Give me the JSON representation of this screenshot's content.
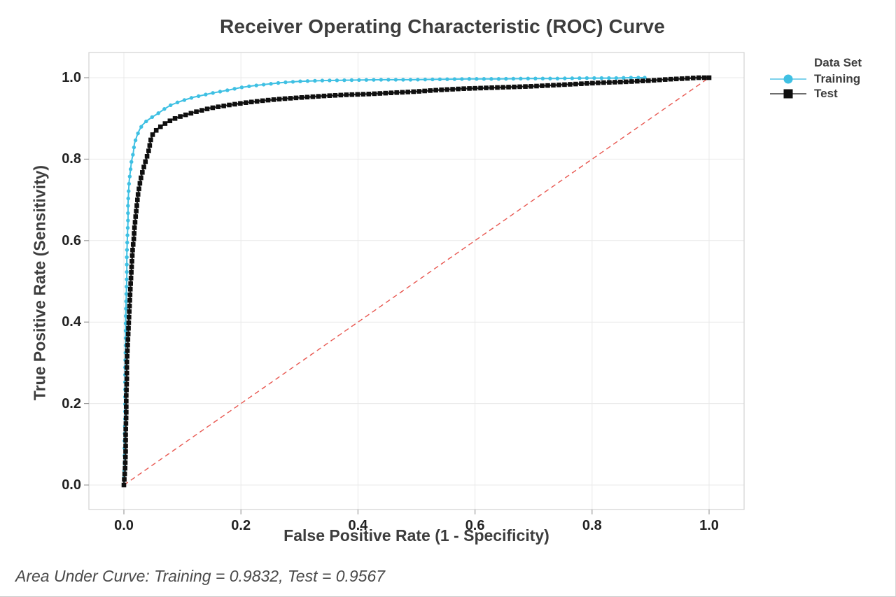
{
  "title": "Receiver Operating Characteristic (ROC) Curve",
  "footer": {
    "text": "Area Under Curve: Training = 0.9832, Test = 0.9567"
  },
  "legend": {
    "title": "Data Set",
    "items": [
      {
        "label": "Training",
        "marker": "circle",
        "marker_color": "#3fc0e3",
        "line_color": "#7dd2ec"
      },
      {
        "label": "Test",
        "marker": "square",
        "marker_color": "#0f0f0f",
        "line_color": "#6e6e6e"
      }
    ]
  },
  "axes": {
    "x": {
      "label": "False Positive Rate (1 - Specificity)",
      "tick_labels": [
        "0.0",
        "0.2",
        "0.4",
        "0.6",
        "0.8",
        "1.0"
      ],
      "tick_values": [
        0,
        0.2,
        0.4,
        0.6,
        0.8,
        1.0
      ],
      "range": [
        0,
        1
      ]
    },
    "y": {
      "label": "True Positive Rate (Sensitivity)",
      "tick_labels": [
        "0.0",
        "0.2",
        "0.4",
        "0.6",
        "0.8",
        "1.0"
      ],
      "tick_values": [
        0,
        0.2,
        0.4,
        0.6,
        0.8,
        1.0
      ],
      "range": [
        0,
        1
      ]
    }
  },
  "colors": {
    "grid": "#e9e9e9",
    "frame": "#d3d3d3",
    "tick": "#9e9e9e",
    "reference": "#e85750"
  },
  "chart_data": {
    "type": "line",
    "title": "Receiver Operating Characteristic (ROC) Curve",
    "xlabel": "False Positive Rate (1 - Specificity)",
    "ylabel": "True Positive Rate (Sensitivity)",
    "xlim": [
      0,
      1
    ],
    "ylim": [
      0,
      1
    ],
    "grid": true,
    "legend_position": "right",
    "legend_title": "Data Set",
    "reference_line": {
      "style": "dashed",
      "color": "#e85750",
      "from": [
        0,
        0
      ],
      "to": [
        1,
        1
      ]
    },
    "annotations": [
      "Area Under Curve: Training = 0.9832, Test = 0.9567"
    ],
    "series": [
      {
        "name": "Training",
        "auc": 0.9832,
        "color": "#3fc0e3",
        "line_color": "#3fc0e3",
        "marker": "circle",
        "points": [
          [
            0.0,
            0.0
          ],
          [
            0.001,
            0.055
          ],
          [
            0.001,
            0.11
          ],
          [
            0.002,
            0.165
          ],
          [
            0.002,
            0.225
          ],
          [
            0.002,
            0.285
          ],
          [
            0.003,
            0.345
          ],
          [
            0.003,
            0.405
          ],
          [
            0.004,
            0.46
          ],
          [
            0.005,
            0.515
          ],
          [
            0.005,
            0.565
          ],
          [
            0.006,
            0.61
          ],
          [
            0.007,
            0.65
          ],
          [
            0.007,
            0.69
          ],
          [
            0.008,
            0.72
          ],
          [
            0.009,
            0.745
          ],
          [
            0.011,
            0.77
          ],
          [
            0.013,
            0.795
          ],
          [
            0.016,
            0.815
          ],
          [
            0.018,
            0.838
          ],
          [
            0.022,
            0.856
          ],
          [
            0.026,
            0.87
          ],
          [
            0.031,
            0.883
          ],
          [
            0.039,
            0.894
          ],
          [
            0.048,
            0.903
          ],
          [
            0.057,
            0.911
          ],
          [
            0.069,
            0.923
          ],
          [
            0.079,
            0.932
          ],
          [
            0.091,
            0.939
          ],
          [
            0.103,
            0.945
          ],
          [
            0.119,
            0.952
          ],
          [
            0.135,
            0.957
          ],
          [
            0.15,
            0.962
          ],
          [
            0.165,
            0.966
          ],
          [
            0.18,
            0.97
          ],
          [
            0.2,
            0.976
          ],
          [
            0.22,
            0.98
          ],
          [
            0.245,
            0.984
          ],
          [
            0.27,
            0.988
          ],
          [
            0.3,
            0.991
          ],
          [
            0.34,
            0.993
          ],
          [
            0.39,
            0.994
          ],
          [
            0.44,
            0.995
          ],
          [
            0.49,
            0.995
          ],
          [
            0.54,
            0.996
          ],
          [
            0.59,
            0.997
          ],
          [
            0.64,
            0.997
          ],
          [
            0.69,
            0.998
          ],
          [
            0.74,
            0.998
          ],
          [
            0.79,
            0.999
          ],
          [
            0.84,
            0.999
          ],
          [
            0.865,
            1.0
          ],
          [
            0.89,
            1.0
          ]
        ]
      },
      {
        "name": "Test",
        "auc": 0.9567,
        "color": "#0f0f0f",
        "line_color": "#2a2a2a",
        "marker": "square",
        "points": [
          [
            0.0,
            0.0
          ],
          [
            0.002,
            0.04
          ],
          [
            0.003,
            0.085
          ],
          [
            0.003,
            0.13
          ],
          [
            0.004,
            0.175
          ],
          [
            0.004,
            0.22
          ],
          [
            0.005,
            0.26
          ],
          [
            0.005,
            0.3
          ],
          [
            0.006,
            0.33
          ],
          [
            0.007,
            0.36
          ],
          [
            0.008,
            0.39
          ],
          [
            0.009,
            0.42
          ],
          [
            0.01,
            0.45
          ],
          [
            0.011,
            0.48
          ],
          [
            0.012,
            0.505
          ],
          [
            0.013,
            0.53
          ],
          [
            0.014,
            0.555
          ],
          [
            0.015,
            0.58
          ],
          [
            0.017,
            0.605
          ],
          [
            0.018,
            0.63
          ],
          [
            0.02,
            0.658
          ],
          [
            0.022,
            0.685
          ],
          [
            0.024,
            0.712
          ],
          [
            0.027,
            0.738
          ],
          [
            0.03,
            0.76
          ],
          [
            0.034,
            0.78
          ],
          [
            0.038,
            0.8
          ],
          [
            0.042,
            0.818
          ],
          [
            0.044,
            0.833
          ],
          [
            0.046,
            0.848
          ],
          [
            0.049,
            0.86
          ],
          [
            0.054,
            0.869
          ],
          [
            0.06,
            0.877
          ],
          [
            0.072,
            0.889
          ],
          [
            0.084,
            0.898
          ],
          [
            0.099,
            0.906
          ],
          [
            0.12,
            0.915
          ],
          [
            0.147,
            0.925
          ],
          [
            0.18,
            0.933
          ],
          [
            0.21,
            0.939
          ],
          [
            0.24,
            0.944
          ],
          [
            0.27,
            0.948
          ],
          [
            0.3,
            0.951
          ],
          [
            0.34,
            0.955
          ],
          [
            0.38,
            0.958
          ],
          [
            0.42,
            0.96
          ],
          [
            0.46,
            0.963
          ],
          [
            0.5,
            0.966
          ],
          [
            0.54,
            0.97
          ],
          [
            0.58,
            0.973
          ],
          [
            0.62,
            0.975
          ],
          [
            0.66,
            0.977
          ],
          [
            0.7,
            0.979
          ],
          [
            0.74,
            0.982
          ],
          [
            0.78,
            0.985
          ],
          [
            0.82,
            0.988
          ],
          [
            0.86,
            0.99
          ],
          [
            0.9,
            0.993
          ],
          [
            0.93,
            0.996
          ],
          [
            0.96,
            0.998
          ],
          [
            0.98,
            1.0
          ],
          [
            1.0,
            1.0
          ]
        ]
      }
    ]
  }
}
